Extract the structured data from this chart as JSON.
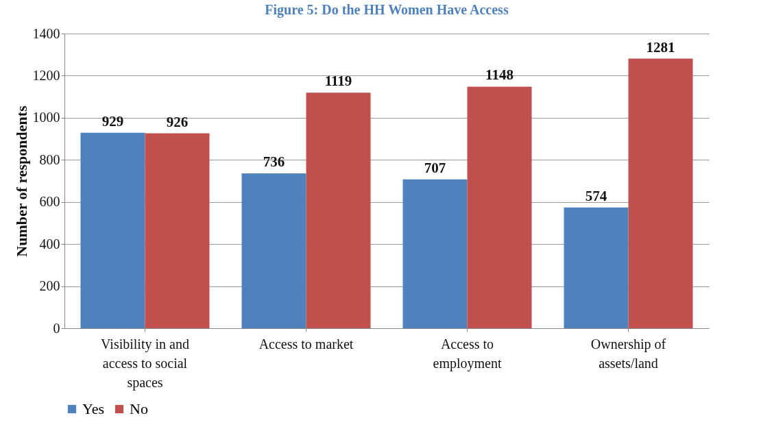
{
  "chart_data": {
    "type": "bar",
    "title": "Figure 5: Do the HH Women Have Access",
    "ylabel": "Number of respondents",
    "categories": [
      "Visibility in and access to social spaces",
      "Access to market",
      "Access to employment",
      "Ownership of assets/land"
    ],
    "series": [
      {
        "name": "Yes",
        "color": "#4f81bd",
        "values": [
          929,
          736,
          707,
          574
        ]
      },
      {
        "name": "No",
        "color": "#c0504d",
        "values": [
          926,
          1119,
          1148,
          1281
        ]
      }
    ],
    "ylim": [
      0,
      1400
    ],
    "yticks": [
      0,
      200,
      400,
      600,
      800,
      1000,
      1200,
      1400
    ],
    "grid": "y",
    "legend": "bottom",
    "data_labels": true
  }
}
